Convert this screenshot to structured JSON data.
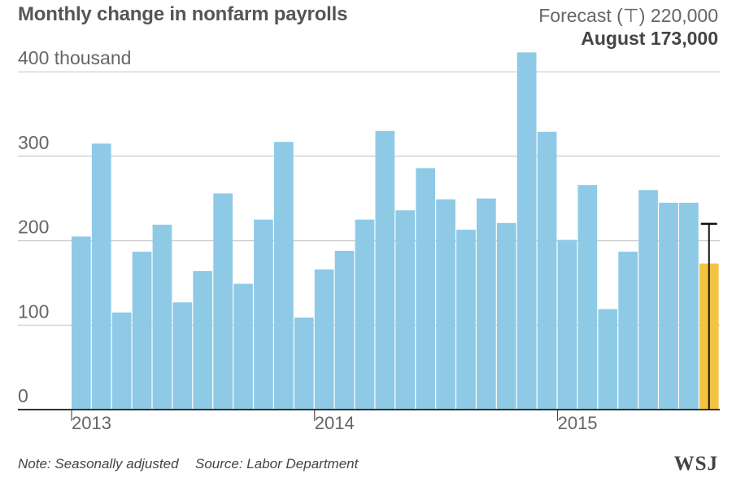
{
  "header": {
    "title": "Monthly change in nonfarm payrolls",
    "forecast_label": "Forecast (⊤) 220,000",
    "latest_label": "August 173,000"
  },
  "footer": {
    "note": "Note: Seasonally adjusted",
    "source": "Source: Labor Department",
    "brand": "WSJ"
  },
  "colors": {
    "bar": "#8ecae6",
    "latest_bar": "#f5c342",
    "grid": "#cccccc",
    "axis": "#333333",
    "forecast_marker": "#111111"
  },
  "chart_data": {
    "type": "bar",
    "ylim": [
      0,
      420
    ],
    "ytick_values": [
      0,
      100,
      200,
      300,
      400
    ],
    "ytick_labels": [
      "0",
      "100",
      "200",
      "300",
      "400 thousand"
    ],
    "x_labels": [
      {
        "label": "2013",
        "index": 0
      },
      {
        "label": "2014",
        "index": 12
      },
      {
        "label": "2015",
        "index": 24
      }
    ],
    "values": [
      205,
      315,
      115,
      187,
      219,
      127,
      164,
      256,
      149,
      225,
      317,
      109,
      166,
      188,
      225,
      330,
      236,
      286,
      249,
      213,
      250,
      221,
      423,
      329,
      201,
      266,
      119,
      187,
      260,
      245,
      245,
      173
    ],
    "highlight_index": 31,
    "forecast": 220,
    "grid": true
  }
}
